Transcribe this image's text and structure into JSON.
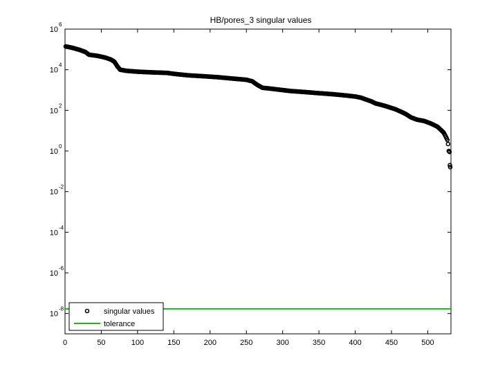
{
  "chart_data": {
    "type": "scatter",
    "title": "HB/pores_3 singular values",
    "xlabel": "",
    "ylabel": "",
    "yscale": "log",
    "xlim": [
      0,
      532
    ],
    "ylim_exp": [
      -9,
      6
    ],
    "xticks": [
      0,
      50,
      100,
      150,
      200,
      250,
      300,
      350,
      400,
      450,
      500
    ],
    "ytick_exponents": [
      -8,
      -6,
      -4,
      -2,
      0,
      2,
      4,
      6
    ],
    "ytick_base": "10",
    "grid": false,
    "legend_position": "bottom-left",
    "series": [
      {
        "name": "singular values",
        "marker": "circle-open",
        "color": "#000000",
        "points": [
          [
            1,
            140000
          ],
          [
            10,
            120000
          ],
          [
            20,
            95000
          ],
          [
            28,
            75000
          ],
          [
            33,
            55000
          ],
          [
            45,
            48000
          ],
          [
            55,
            40000
          ],
          [
            63,
            32000
          ],
          [
            68,
            25000
          ],
          [
            72,
            15000
          ],
          [
            76,
            10000
          ],
          [
            85,
            8800
          ],
          [
            100,
            8000
          ],
          [
            120,
            7400
          ],
          [
            140,
            7000
          ],
          [
            155,
            6000
          ],
          [
            170,
            5300
          ],
          [
            190,
            4800
          ],
          [
            210,
            4300
          ],
          [
            230,
            3700
          ],
          [
            250,
            3200
          ],
          [
            258,
            2700
          ],
          [
            265,
            1800
          ],
          [
            272,
            1300
          ],
          [
            290,
            1100
          ],
          [
            310,
            900
          ],
          [
            330,
            800
          ],
          [
            350,
            700
          ],
          [
            370,
            620
          ],
          [
            385,
            550
          ],
          [
            400,
            480
          ],
          [
            408,
            420
          ],
          [
            415,
            340
          ],
          [
            422,
            280
          ],
          [
            428,
            220
          ],
          [
            440,
            170
          ],
          [
            455,
            115
          ],
          [
            465,
            80
          ],
          [
            470,
            65
          ],
          [
            477,
            45
          ],
          [
            485,
            35
          ],
          [
            495,
            30
          ],
          [
            505,
            22
          ],
          [
            513,
            16
          ],
          [
            518,
            11
          ],
          [
            522,
            8
          ],
          [
            525,
            5
          ],
          [
            527,
            3.5
          ],
          [
            528,
            2.2
          ],
          [
            529,
            1.0
          ],
          [
            530,
            0.9
          ],
          [
            530.5,
            0.2
          ],
          [
            531,
            0.16
          ]
        ]
      },
      {
        "name": "tolerance",
        "color": "#00cc00",
        "value": 1.7e-08
      }
    ]
  }
}
